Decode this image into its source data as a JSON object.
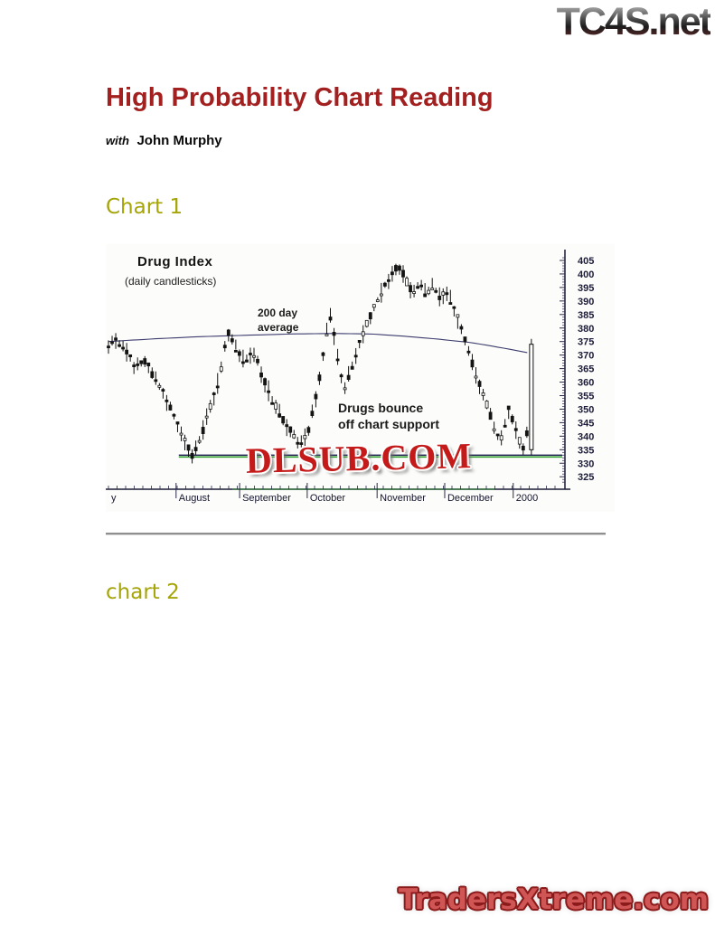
{
  "page": {
    "header_logo": "TC4S.net",
    "title": "High Probability Chart Reading",
    "subtitle_prefix": "with",
    "subtitle_name": "John Murphy",
    "section1_heading": "Chart 1",
    "section2_heading": "chart 2",
    "footer_logo": "TradersXtreme.com"
  },
  "colors": {
    "title_red": "#a32020",
    "heading_olive": "#a5a408",
    "watermark_red": "#c51a1a",
    "footer_red": "#d05555",
    "support_green": "#2f9e2f",
    "axis_navy": "#1c1c38",
    "ma_line": "#3c3c6e"
  },
  "chart_data": {
    "type": "candlestick",
    "title": "Drug Index",
    "subtitle": "(daily candlesticks)",
    "ma_label": [
      "200 day",
      "average"
    ],
    "note": [
      "Drugs bounce",
      "off chart support"
    ],
    "watermark": "DLSUB.COM",
    "ylabel_side": "right",
    "ylim": [
      322,
      408
    ],
    "y_ticks": [
      405,
      400,
      395,
      390,
      385,
      380,
      375,
      370,
      365,
      360,
      355,
      350,
      345,
      340,
      335,
      330,
      325
    ],
    "x_labels": [
      [
        "y",
        0
      ],
      [
        "August",
        0.149
      ],
      [
        "September",
        0.289
      ],
      [
        "October",
        0.438
      ],
      [
        "November",
        0.592
      ],
      [
        "December",
        0.741
      ],
      [
        "2000",
        0.892
      ]
    ],
    "support_level": 333,
    "price_anchors": [
      [
        0,
        373
      ],
      [
        0.015,
        376
      ],
      [
        0.04,
        371
      ],
      [
        0.06,
        365
      ],
      [
        0.08,
        368
      ],
      [
        0.1,
        362
      ],
      [
        0.12,
        356
      ],
      [
        0.14,
        349
      ],
      [
        0.155,
        343
      ],
      [
        0.17,
        337
      ],
      [
        0.185,
        333
      ],
      [
        0.2,
        338
      ],
      [
        0.215,
        346
      ],
      [
        0.23,
        354
      ],
      [
        0.245,
        362
      ],
      [
        0.255,
        372
      ],
      [
        0.265,
        378
      ],
      [
        0.28,
        373
      ],
      [
        0.3,
        368
      ],
      [
        0.32,
        371
      ],
      [
        0.335,
        364
      ],
      [
        0.35,
        358
      ],
      [
        0.365,
        352
      ],
      [
        0.385,
        346
      ],
      [
        0.405,
        341
      ],
      [
        0.425,
        337
      ],
      [
        0.44,
        342
      ],
      [
        0.455,
        352
      ],
      [
        0.465,
        362
      ],
      [
        0.475,
        372
      ],
      [
        0.483,
        381
      ],
      [
        0.49,
        384
      ],
      [
        0.5,
        374
      ],
      [
        0.51,
        364
      ],
      [
        0.52,
        358
      ],
      [
        0.535,
        365
      ],
      [
        0.55,
        373
      ],
      [
        0.565,
        380
      ],
      [
        0.58,
        386
      ],
      [
        0.595,
        391
      ],
      [
        0.61,
        396
      ],
      [
        0.625,
        400
      ],
      [
        0.64,
        403
      ],
      [
        0.655,
        398
      ],
      [
        0.67,
        393
      ],
      [
        0.685,
        397
      ],
      [
        0.7,
        392
      ],
      [
        0.715,
        396
      ],
      [
        0.73,
        391
      ],
      [
        0.745,
        394
      ],
      [
        0.76,
        388
      ],
      [
        0.775,
        381
      ],
      [
        0.79,
        373
      ],
      [
        0.805,
        365
      ],
      [
        0.82,
        358
      ],
      [
        0.835,
        351
      ],
      [
        0.85,
        344
      ],
      [
        0.862,
        337
      ],
      [
        0.872,
        343
      ],
      [
        0.882,
        350
      ],
      [
        0.892,
        346
      ],
      [
        0.902,
        340
      ],
      [
        0.912,
        335
      ],
      [
        0.92,
        337
      ],
      [
        0.936,
        372
      ]
    ],
    "ma_anchors": [
      [
        0,
        375
      ],
      [
        0.1,
        376
      ],
      [
        0.2,
        376.8
      ],
      [
        0.3,
        377.3
      ],
      [
        0.4,
        377.8
      ],
      [
        0.5,
        378
      ],
      [
        0.58,
        377.8
      ],
      [
        0.65,
        377
      ],
      [
        0.72,
        376
      ],
      [
        0.8,
        374.6
      ],
      [
        0.87,
        372.6
      ],
      [
        0.936,
        370.5
      ]
    ],
    "final_candle": {
      "f": 0.932,
      "low": 333,
      "high": 376,
      "body_low": 335,
      "body_high": 374
    }
  }
}
